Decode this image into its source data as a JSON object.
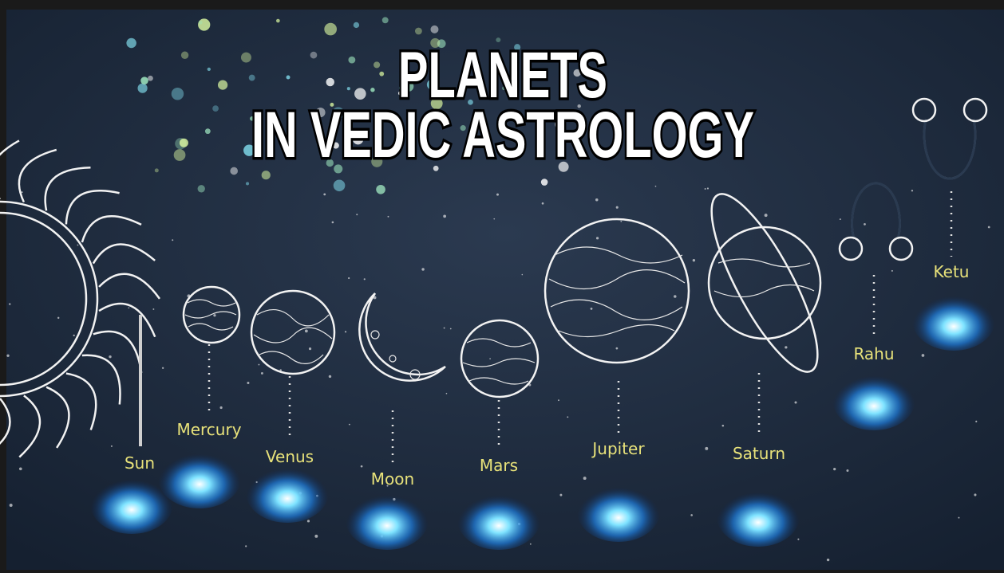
{
  "title": {
    "lines": [
      "PLANETS",
      "IN VEDIC ASTROLOGY"
    ]
  },
  "planets": [
    {
      "label": "Sun"
    },
    {
      "label": "Mercury"
    },
    {
      "label": "Venus"
    },
    {
      "label": "Moon"
    },
    {
      "label": "Mars"
    },
    {
      "label": "Jupiter"
    },
    {
      "label": "Saturn"
    },
    {
      "label": "Rahu"
    },
    {
      "label": "Ketu"
    }
  ]
}
